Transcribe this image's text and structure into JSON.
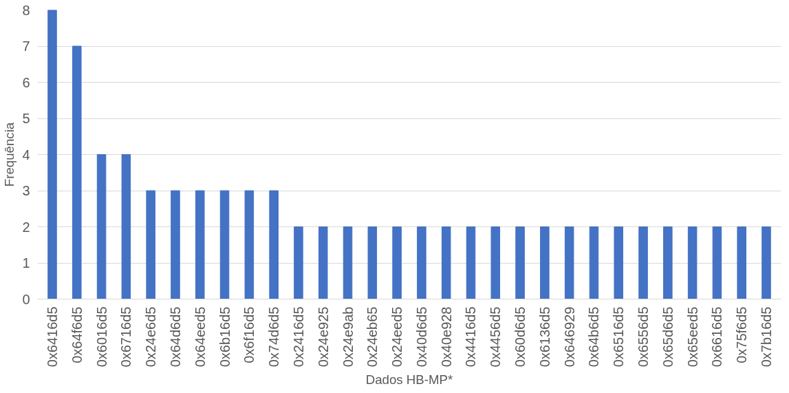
{
  "chart_data": {
    "type": "bar",
    "xlabel": "Dados HB-MP*",
    "ylabel": "Frequência",
    "categories": [
      "0x6416d5",
      "0x64f6d5",
      "0x6016d5",
      "0x6716d5",
      "0x24e6d5",
      "0x64d6d5",
      "0x64eed5",
      "0x6b16d5",
      "0x6f16d5",
      "0x74d6d5",
      "0x2416d5",
      "0x24e925",
      "0x24e9ab",
      "0x24eb65",
      "0x24eed5",
      "0x40d6d5",
      "0x40e928",
      "0x4416d5",
      "0x4456d5",
      "0x60d6d5",
      "0x6136d5",
      "0x646929",
      "0x64b6d5",
      "0x6516d5",
      "0x6556d5",
      "0x65d6d5",
      "0x65eed5",
      "0x6616d5",
      "0x75f6d5",
      "0x7b16d5"
    ],
    "values": [
      8,
      7,
      4,
      4,
      3,
      3,
      3,
      3,
      3,
      3,
      2,
      2,
      2,
      2,
      2,
      2,
      2,
      2,
      2,
      2,
      2,
      2,
      2,
      2,
      2,
      2,
      2,
      2,
      2,
      2
    ],
    "color": "#4472c4",
    "ylim": [
      0,
      8
    ],
    "yticks": [
      0,
      1,
      2,
      3,
      4,
      5,
      6,
      7,
      8
    ],
    "grid": "y"
  }
}
